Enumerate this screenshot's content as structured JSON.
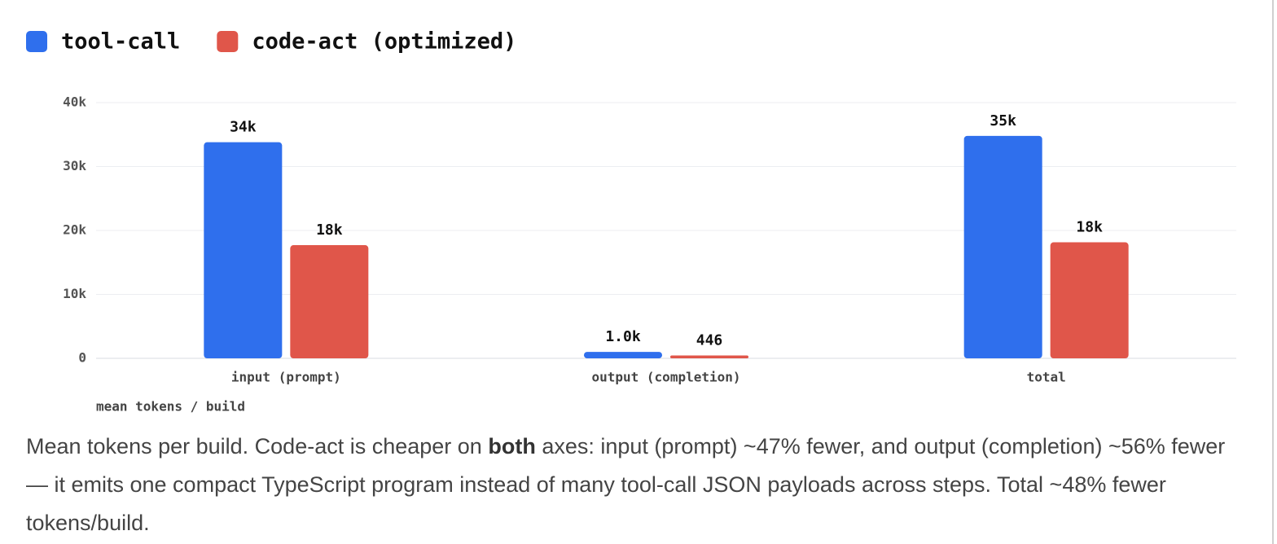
{
  "chart_data": {
    "type": "bar",
    "categories": [
      "input (prompt)",
      "output (completion)",
      "total"
    ],
    "series": [
      {
        "name": "tool-call",
        "color": "#2f6fed",
        "values": [
          33800,
          1000,
          34800
        ],
        "value_labels": [
          "34k",
          "1.0k",
          "35k"
        ]
      },
      {
        "name": "code-act (optimized)",
        "color": "#e0564a",
        "values": [
          17700,
          446,
          18146
        ],
        "value_labels": [
          "18k",
          "446",
          "18k"
        ]
      }
    ],
    "y_label": "mean tokens / build",
    "ylim": [
      0,
      40000
    ],
    "yticks": [
      0,
      {
        "value": 10000,
        "label": "10k"
      },
      {
        "value": 20000,
        "label": "20k"
      },
      {
        "value": 30000,
        "label": "30k"
      },
      {
        "value": 40000,
        "label": "40k"
      }
    ],
    "grid": true,
    "legend": "top-left",
    "caption": [
      "Mean tokens per build. Code-act is cheaper on ",
      "both",
      " axes: input (prompt) ~47% fewer, and output (completion) ~56% fewer — it emits one compact TypeScript program instead of many tool-call JSON payloads across steps. Total ~48% fewer tokens/build."
    ]
  }
}
